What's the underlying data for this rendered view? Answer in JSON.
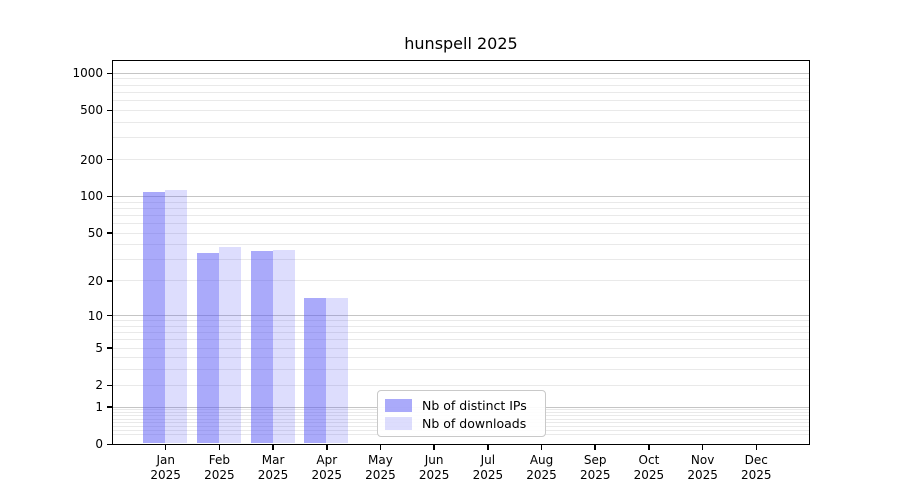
{
  "title": "hunspell 2025",
  "chart_data": {
    "type": "bar",
    "title": "hunspell 2025",
    "xlabel": "",
    "ylabel": "",
    "year_label": "2025",
    "categories": [
      "Jan",
      "Feb",
      "Mar",
      "Apr",
      "May",
      "Jun",
      "Jul",
      "Aug",
      "Sep",
      "Oct",
      "Nov",
      "Dec"
    ],
    "series": [
      {
        "name": "Nb of distinct IPs",
        "fill": "rgba(85,85,245,0.5)",
        "values": [
          107,
          34,
          35,
          14,
          0,
          0,
          0,
          0,
          0,
          0,
          0,
          0
        ]
      },
      {
        "name": "Nb of downloads",
        "fill": "rgba(85,85,245,0.2)",
        "values": [
          111,
          38,
          36,
          14,
          0,
          0,
          0,
          0,
          0,
          0,
          0,
          0
        ]
      }
    ],
    "yscale": "log10(1+v)",
    "yticks": [
      0,
      1,
      2,
      5,
      10,
      20,
      50,
      100,
      200,
      500,
      1000
    ],
    "grid": {
      "major_values": [
        1,
        10,
        100,
        1000
      ],
      "minor_multipliers": [
        2,
        3,
        4,
        5,
        6,
        7,
        8,
        9
      ],
      "minor_decades": [
        0.1,
        1,
        10,
        100
      ]
    },
    "legend_position": "inside lower-center",
    "colors": {
      "major_grid": "#c5c5c5",
      "minor_grid": "#e9e9e9",
      "axis": "#000000",
      "text": "#000000",
      "background": "#ffffff"
    }
  }
}
